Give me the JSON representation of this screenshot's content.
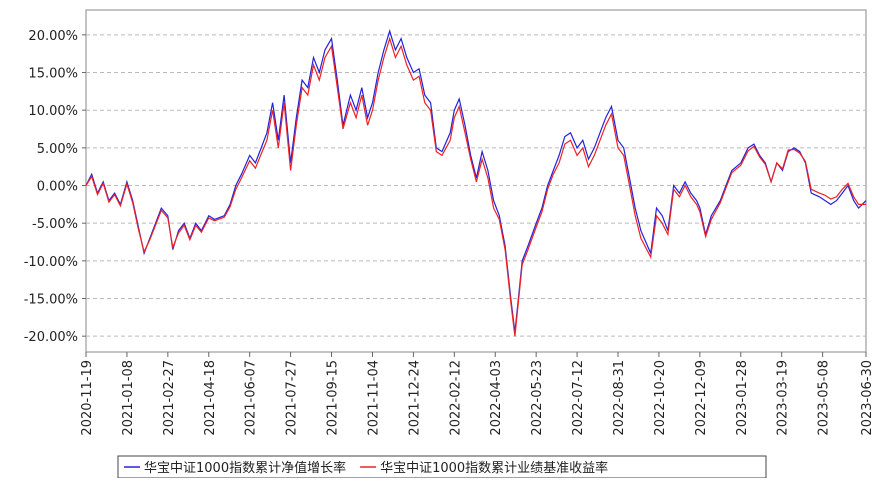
{
  "chart_data": {
    "type": "line",
    "x": [
      "2020-11-19",
      "2020-11-26",
      "2020-12-03",
      "2020-12-10",
      "2020-12-17",
      "2020-12-24",
      "2020-12-31",
      "2021-01-08",
      "2021-01-15",
      "2021-01-22",
      "2021-01-29",
      "2021-02-05",
      "2021-02-19",
      "2021-02-27",
      "2021-03-05",
      "2021-03-12",
      "2021-03-19",
      "2021-03-26",
      "2021-04-02",
      "2021-04-09",
      "2021-04-18",
      "2021-04-25",
      "2021-05-07",
      "2021-05-14",
      "2021-05-21",
      "2021-05-28",
      "2021-06-07",
      "2021-06-14",
      "2021-06-21",
      "2021-06-28",
      "2021-07-05",
      "2021-07-12",
      "2021-07-19",
      "2021-07-27",
      "2021-08-03",
      "2021-08-10",
      "2021-08-17",
      "2021-08-24",
      "2021-08-31",
      "2021-09-07",
      "2021-09-15",
      "2021-09-22",
      "2021-09-29",
      "2021-10-08",
      "2021-10-15",
      "2021-10-22",
      "2021-10-29",
      "2021-11-04",
      "2021-11-11",
      "2021-11-18",
      "2021-11-25",
      "2021-12-02",
      "2021-12-09",
      "2021-12-16",
      "2021-12-24",
      "2021-12-31",
      "2022-01-07",
      "2022-01-14",
      "2022-01-21",
      "2022-01-28",
      "2022-02-07",
      "2022-02-12",
      "2022-02-18",
      "2022-02-25",
      "2022-03-04",
      "2022-03-11",
      "2022-03-18",
      "2022-03-25",
      "2022-04-01",
      "2022-04-08",
      "2022-04-15",
      "2022-04-22",
      "2022-04-27",
      "2022-05-06",
      "2022-05-13",
      "2022-05-23",
      "2022-05-30",
      "2022-06-06",
      "2022-06-13",
      "2022-06-20",
      "2022-06-27",
      "2022-07-04",
      "2022-07-12",
      "2022-07-19",
      "2022-07-26",
      "2022-08-02",
      "2022-08-09",
      "2022-08-16",
      "2022-08-23",
      "2022-08-31",
      "2022-09-07",
      "2022-09-14",
      "2022-09-21",
      "2022-09-28",
      "2022-10-10",
      "2022-10-17",
      "2022-10-24",
      "2022-10-31",
      "2022-11-07",
      "2022-11-14",
      "2022-11-21",
      "2022-11-28",
      "2022-12-05",
      "2022-12-09",
      "2022-12-16",
      "2022-12-23",
      "2023-01-03",
      "2023-01-10",
      "2023-01-17",
      "2023-01-28",
      "2023-02-06",
      "2023-02-13",
      "2023-02-20",
      "2023-02-27",
      "2023-03-06",
      "2023-03-13",
      "2023-03-20",
      "2023-03-27",
      "2023-04-03",
      "2023-04-10",
      "2023-04-17",
      "2023-04-24",
      "2023-05-04",
      "2023-05-11",
      "2023-05-18",
      "2023-05-25",
      "2023-06-01",
      "2023-06-08",
      "2023-06-15",
      "2023-06-21",
      "2023-06-30"
    ],
    "series": [
      {
        "name": "华宝中证1000指数累计净值增长率",
        "color": "#2222dd",
        "values": [
          0,
          1.5,
          -1,
          0.5,
          -2,
          -1,
          -2.5,
          0.5,
          -2,
          -5.5,
          -9,
          -7,
          -3,
          -4,
          -8.5,
          -6,
          -5,
          -7,
          -5,
          -6,
          -4,
          -4.5,
          -4,
          -2.5,
          0,
          1.5,
          4,
          3,
          5,
          7,
          11,
          6,
          12,
          3,
          9,
          14,
          13,
          17,
          15,
          18,
          19.5,
          14,
          8,
          12,
          10,
          13,
          9,
          11,
          15,
          18,
          20.5,
          18,
          19.5,
          17,
          15,
          15.5,
          12,
          11,
          5,
          4.5,
          7,
          10,
          11.5,
          8,
          4,
          1,
          4.5,
          2,
          -2,
          -4,
          -8,
          -15,
          -19.5,
          -10,
          -8,
          -5,
          -3,
          0,
          2,
          4,
          6.5,
          7,
          5,
          6,
          3.5,
          5,
          7,
          9,
          10.5,
          6,
          5,
          1,
          -3,
          -6,
          -9,
          -3,
          -4,
          -6,
          0,
          -1,
          0.5,
          -1,
          -2,
          -3,
          -6.5,
          -4,
          -2,
          0,
          2,
          3,
          5,
          5.5,
          4,
          3,
          0.5,
          3,
          2,
          4.5,
          5,
          4.5,
          3,
          -1,
          -1.5,
          -2,
          -2.5,
          -2,
          -1,
          0,
          -2,
          -3,
          -2
        ]
      },
      {
        "name": "华宝中证1000指数累计业绩基准收益率",
        "color": "#ee2222",
        "values": [
          0,
          1.2,
          -1.2,
          0.3,
          -2.2,
          -1.2,
          -2.7,
          0.2,
          -2.3,
          -5.8,
          -8.8,
          -7.2,
          -3.3,
          -4.3,
          -8.2,
          -6.3,
          -5.3,
          -7.2,
          -5.3,
          -6.2,
          -4.3,
          -4.7,
          -4.2,
          -2.8,
          -0.5,
          1,
          3.3,
          2.3,
          4.2,
          6,
          10,
          5,
          11,
          2,
          8,
          13,
          12,
          16,
          14,
          17,
          18.5,
          13,
          7.5,
          11,
          9,
          12,
          8,
          10,
          14,
          17,
          19.5,
          17,
          18.5,
          16,
          14,
          14.5,
          11,
          10,
          4.5,
          4,
          6,
          9,
          10.5,
          7,
          3.5,
          0.5,
          3.5,
          1,
          -3,
          -4.5,
          -8.5,
          -15.5,
          -20,
          -10.5,
          -8.5,
          -5.5,
          -3.5,
          -0.5,
          1.5,
          3,
          5.5,
          6,
          4,
          5,
          2.5,
          4,
          6,
          8,
          9.5,
          5,
          4,
          0,
          -4,
          -7,
          -9.5,
          -4,
          -5,
          -6.5,
          -0.5,
          -1.5,
          0,
          -1.5,
          -2.5,
          -3.5,
          -6.8,
          -4.5,
          -2.3,
          -0.3,
          1.7,
          2.7,
          4.6,
          5.2,
          3.8,
          2.8,
          0.5,
          3,
          2.2,
          4.7,
          4.8,
          4.3,
          3.2,
          -0.5,
          -1,
          -1.3,
          -1.8,
          -1.5,
          -0.5,
          0.3,
          -1.5,
          -2.5,
          -2.5
        ]
      }
    ],
    "xlim": [
      "2020-11-19",
      "2023-06-30"
    ],
    "xticks": [
      "2020-11-19",
      "2021-01-08",
      "2021-02-27",
      "2021-04-18",
      "2021-06-07",
      "2021-07-27",
      "2021-09-15",
      "2021-11-04",
      "2021-12-24",
      "2022-02-12",
      "2022-04-03",
      "2022-05-23",
      "2022-07-12",
      "2022-08-31",
      "2022-10-20",
      "2022-12-09",
      "2023-01-28",
      "2023-03-19",
      "2023-05-08",
      "2023-06-30"
    ],
    "ylim": [
      -22.1,
      23.3
    ],
    "yticks": [
      {
        "value": 20,
        "label": "20.00%"
      },
      {
        "value": 15,
        "label": "15.00%"
      },
      {
        "value": 10,
        "label": "10.00%"
      },
      {
        "value": 5,
        "label": "5.00%"
      },
      {
        "value": 0,
        "label": "0.00%"
      },
      {
        "value": -5,
        "label": "-5.00%"
      },
      {
        "value": -10,
        "label": "-10.00%"
      },
      {
        "value": -15,
        "label": "-15.00%"
      },
      {
        "value": -20,
        "label": "-20.00%"
      }
    ],
    "grid": true
  }
}
